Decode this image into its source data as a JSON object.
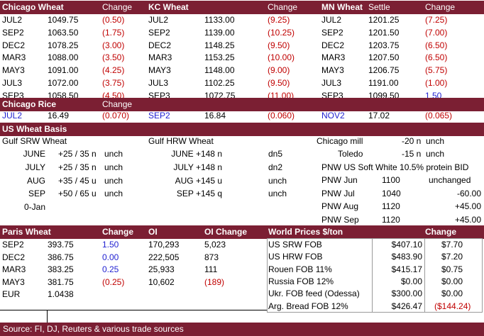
{
  "futures": {
    "headers": [
      "Chicago Wheat",
      "Change",
      "KC Wheat",
      "Change",
      "MN Wheat",
      "Settle",
      "Change"
    ],
    "rows": [
      [
        "JUL2",
        "1049.75",
        "(0.50)",
        "JUL2",
        "1133.00",
        "(9.25)",
        "JUL2",
        "1201.25",
        "(7.25)"
      ],
      [
        "SEP2",
        "1063.50",
        "(1.75)",
        "SEP2",
        "1139.00",
        "(10.25)",
        "SEP2",
        "1201.50",
        "(7.00)"
      ],
      [
        "DEC2",
        "1078.25",
        "(3.00)",
        "DEC2",
        "1148.25",
        "(9.50)",
        "DEC2",
        "1203.75",
        "(6.50)"
      ],
      [
        "MAR3",
        "1088.00",
        "(3.50)",
        "MAR3",
        "1153.25",
        "(10.00)",
        "MAR3",
        "1207.50",
        "(6.50)"
      ],
      [
        "MAY3",
        "1091.00",
        "(4.25)",
        "MAY3",
        "1148.00",
        "(9.00)",
        "MAY3",
        "1206.75",
        "(5.75)"
      ],
      [
        "JUL3",
        "1072.00",
        "(3.75)",
        "JUL3",
        "1102.25",
        "(9.50)",
        "JUL3",
        "1191.00",
        "(1.00)"
      ],
      [
        "SEP3",
        "1058.50",
        "(4.50)",
        "SEP3",
        "1072.75",
        "(11.00)",
        "SEP3",
        "1099.50",
        "1.50"
      ]
    ]
  },
  "rice": {
    "header": "Chicago Rice",
    "change_label": "Change",
    "values": [
      "JUL2",
      "16.49",
      "(0.070)",
      "SEP2",
      "16.84",
      "(0.060)",
      "NOV2",
      "17.02",
      "(0.065)"
    ]
  },
  "basis": {
    "header": "US Wheat Basis",
    "gulf_srw_title": "Gulf SRW Wheat",
    "gulf_hrw_title": "Gulf HRW Wheat",
    "srw": [
      [
        "JUNE",
        "+25 / 35 n",
        "unch"
      ],
      [
        "JULY",
        "+25 / 35 n",
        "unch"
      ],
      [
        "AUG",
        "+35 / 45 u",
        "unch"
      ],
      [
        "SEP",
        "+50 / 65 u",
        "unch"
      ]
    ],
    "srw_date": "0-Jan",
    "hrw": [
      [
        "JUNE +148 n",
        "dn5"
      ],
      [
        "JULY +148 n",
        "dn2"
      ],
      [
        "AUG +145 u",
        "unch"
      ],
      [
        "SEP +145 q",
        "unch"
      ]
    ],
    "chicago_mill": [
      "Chicago mill",
      "-20 n",
      "unch"
    ],
    "toledo": [
      "Toledo",
      "-15 n",
      "unch"
    ],
    "pnw_title": "PNW US Soft White 10.5% protein BID",
    "pnw": [
      [
        "PNW Jun",
        "1100",
        "unchanged"
      ],
      [
        "PNW Jul",
        "1040",
        "-60.00"
      ],
      [
        "PNW Aug",
        "1120",
        "+45.00"
      ],
      [
        "PNW Sep",
        "1120",
        "+45.00"
      ]
    ]
  },
  "paris": {
    "headers": [
      "Paris Wheat",
      "Change",
      "OI",
      "OI Change"
    ],
    "rows": [
      [
        "SEP2",
        "393.75",
        "1.50",
        "170,293",
        "5,023"
      ],
      [
        "DEC2",
        "386.75",
        "0.00",
        "222,505",
        "873"
      ],
      [
        "MAR3",
        "383.25",
        "0.25",
        "25,933",
        "111"
      ],
      [
        "MAY3",
        "381.75",
        "(0.25)",
        "10,602",
        "(189)"
      ]
    ],
    "eur_label": "EUR",
    "eur_value": "1.0438"
  },
  "world": {
    "headers": [
      "World Prices $/ton",
      "Change"
    ],
    "rows": [
      [
        "US SRW FOB",
        "$407.10",
        "$7.70"
      ],
      [
        "US HRW FOB",
        "$483.90",
        "$7.20"
      ],
      [
        "Rouen FOB 11%",
        "$415.17",
        "$0.75"
      ],
      [
        "Russia FOB 12%",
        "$0.00",
        "$0.00"
      ],
      [
        "Ukr. FOB feed (Odessa)",
        "$300.00",
        "$0.00"
      ],
      [
        "Arg. Bread FOB 12%",
        "$426.47",
        "($144.24)"
      ]
    ]
  },
  "footer": "Source: FI, DJ, Reuters & various trade sources",
  "colors": {
    "header_bg": "#7b1f33",
    "negative": "#c00000",
    "contract": "#1f1fd1"
  }
}
